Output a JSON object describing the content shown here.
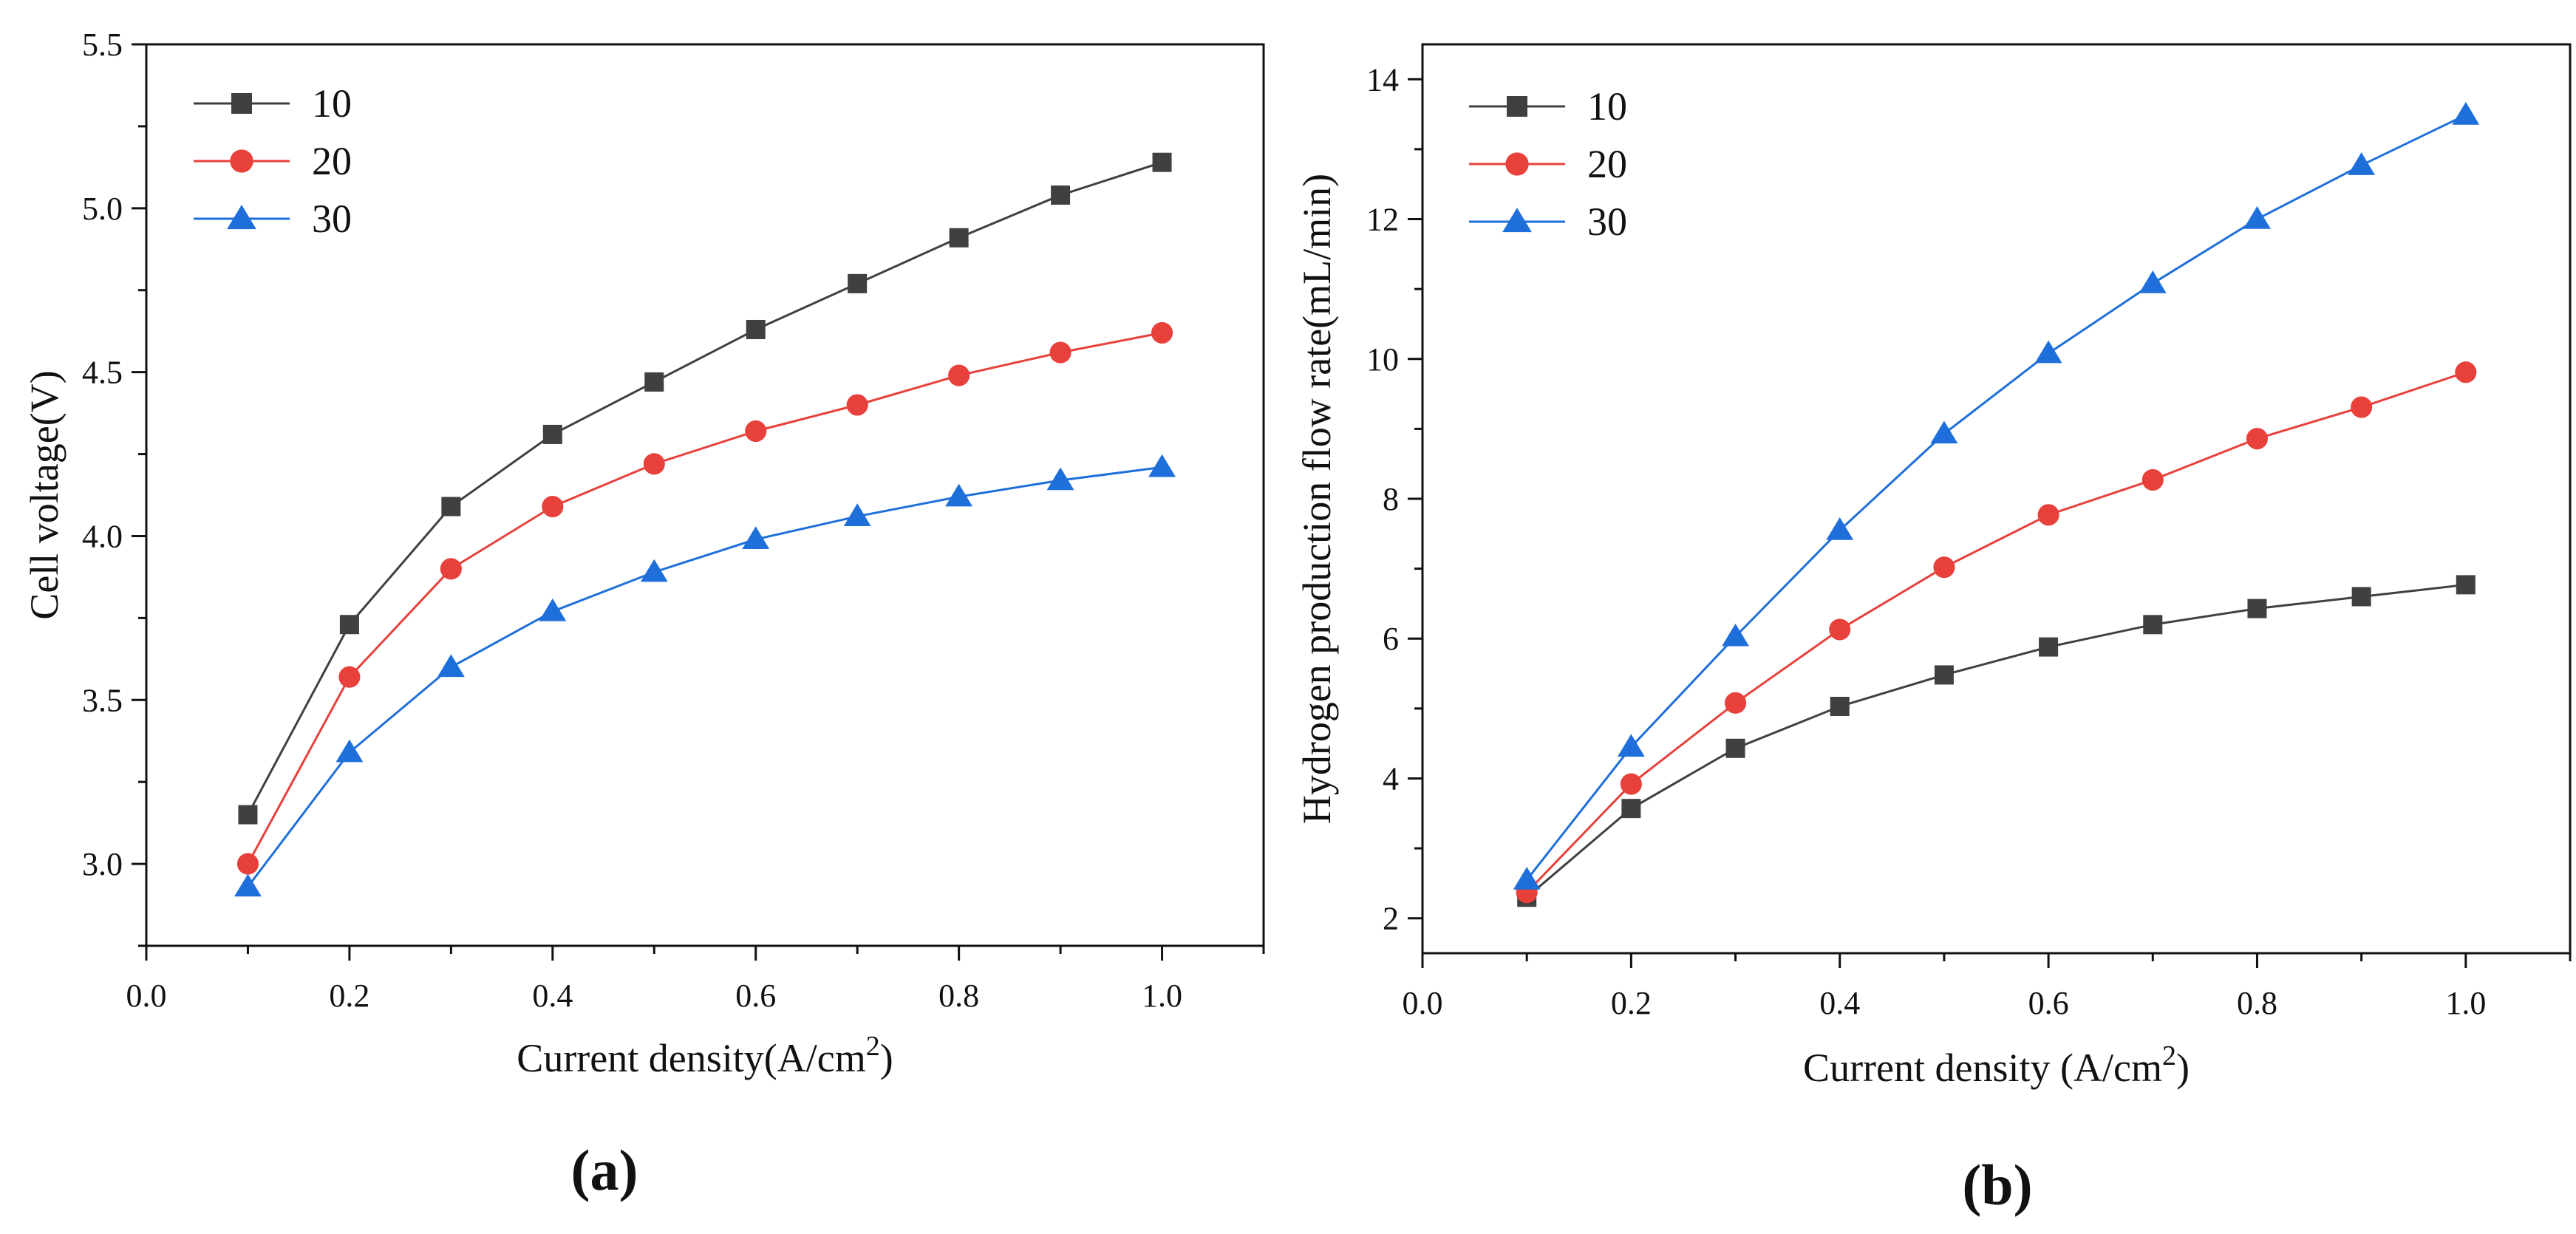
{
  "chart_data": [
    {
      "type": "line",
      "panel_label": "(a)",
      "xlabel": "Current density(A/cm",
      "xlabel_sup": "2",
      "xlabel_suffix": ")",
      "ylabel": "Cell voltage(V)",
      "xlim": [
        0.0,
        1.1
      ],
      "ylim": [
        2.75,
        5.5
      ],
      "xticks": [
        "0.0",
        "0.2",
        "0.4",
        "0.6",
        "0.8",
        "1.0"
      ],
      "yticks": [
        "3.0",
        "3.5",
        "4.0",
        "4.5",
        "5.0",
        "5.5"
      ],
      "grid": false,
      "legend_position": "top-left",
      "x": [
        0.1,
        0.2,
        0.3,
        0.4,
        0.5,
        0.6,
        0.7,
        0.8,
        0.9,
        1.0
      ],
      "series": [
        {
          "name": "10",
          "color": "#404040",
          "marker": "square",
          "values": [
            3.15,
            3.73,
            4.09,
            4.31,
            4.47,
            4.63,
            4.77,
            4.91,
            5.04,
            5.14
          ]
        },
        {
          "name": "20",
          "color": "#e8413c",
          "marker": "circle",
          "values": [
            3.0,
            3.57,
            3.9,
            4.09,
            4.22,
            4.32,
            4.4,
            4.49,
            4.56,
            4.62
          ]
        },
        {
          "name": "30",
          "color": "#1f6fdb",
          "marker": "triangle",
          "values": [
            2.93,
            3.34,
            3.6,
            3.77,
            3.89,
            3.99,
            4.06,
            4.12,
            4.17,
            4.21
          ]
        }
      ]
    },
    {
      "type": "line",
      "panel_label": "(b)",
      "xlabel": "Current density (A/cm",
      "xlabel_sup": "2",
      "xlabel_suffix": ")",
      "ylabel": "Hydrogen production flow rate(mL/min)",
      "xlim": [
        0.0,
        1.1
      ],
      "ylim": [
        1.5,
        14.5
      ],
      "xticks": [
        "0.0",
        "0.2",
        "0.4",
        "0.6",
        "0.8",
        "1.0"
      ],
      "yticks": [
        "2",
        "4",
        "6",
        "8",
        "10",
        "12",
        "14"
      ],
      "grid": false,
      "legend_position": "top-left",
      "x": [
        0.1,
        0.2,
        0.3,
        0.4,
        0.5,
        0.6,
        0.7,
        0.8,
        0.9,
        1.0
      ],
      "series": [
        {
          "name": "10",
          "color": "#404040",
          "marker": "square",
          "values": [
            2.3,
            3.57,
            4.43,
            5.03,
            5.48,
            5.88,
            6.2,
            6.43,
            6.6,
            6.77
          ]
        },
        {
          "name": "20",
          "color": "#e8413c",
          "marker": "circle",
          "values": [
            2.37,
            3.92,
            5.08,
            6.13,
            7.02,
            7.77,
            8.27,
            8.86,
            9.31,
            9.81
          ]
        },
        {
          "name": "30",
          "color": "#1f6fdb",
          "marker": "triangle",
          "values": [
            2.55,
            4.45,
            6.03,
            7.55,
            8.93,
            10.08,
            11.08,
            12.0,
            12.77,
            13.49
          ]
        }
      ]
    }
  ]
}
